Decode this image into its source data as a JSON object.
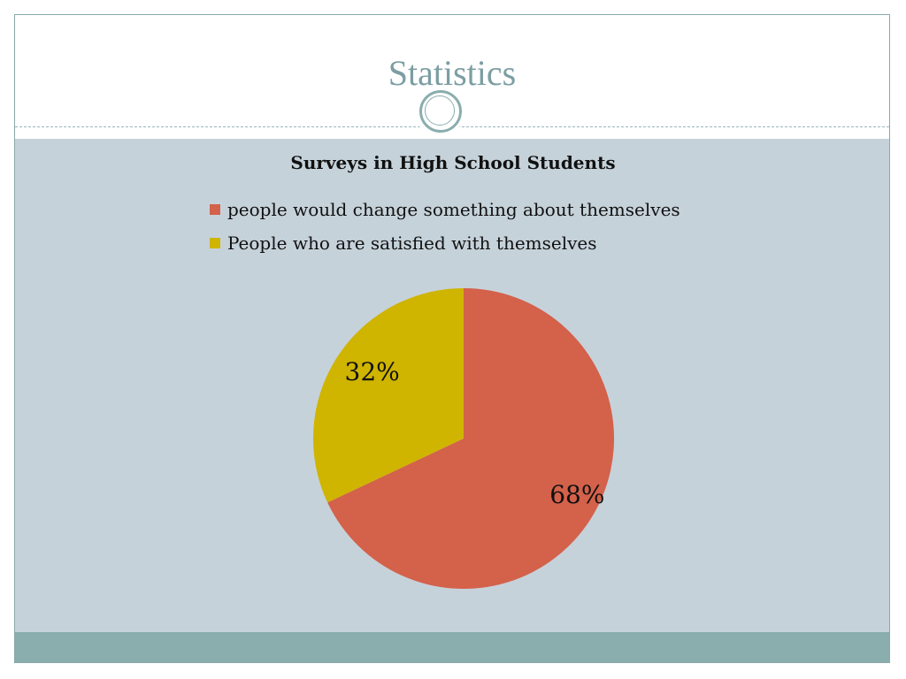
{
  "slide": {
    "title": "Statistics"
  },
  "colors": {
    "title": "#7c9ea3",
    "content_bg": "#c6d2da",
    "footer_bar": "#8aadae",
    "series_1": "#d4614a",
    "series_2": "#cfb400"
  },
  "chart_data": {
    "type": "pie",
    "title": "Surveys in High School Students",
    "categories": [
      "people would change something about themselves",
      "People who are satisfied with themselves"
    ],
    "values": [
      68,
      32
    ],
    "data_labels": [
      "68%",
      "32%"
    ],
    "legend_position": "top"
  }
}
